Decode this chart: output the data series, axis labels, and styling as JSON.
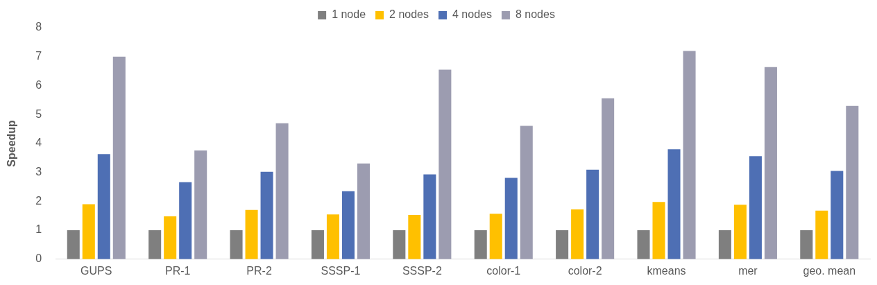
{
  "chart_data": {
    "type": "bar",
    "ylabel": "Speedup",
    "categories": [
      "GUPS",
      "PR-1",
      "PR-2",
      "SSSP-1",
      "SSSP-2",
      "color-1",
      "color-2",
      "kmeans",
      "mer",
      "geo. mean"
    ],
    "series": [
      {
        "name": "1 node",
        "color": "#7f7f7f",
        "values": [
          1,
          1,
          1,
          1,
          1,
          1,
          1,
          1,
          1,
          1
        ]
      },
      {
        "name": "2 nodes",
        "color": "#ffc000",
        "values": [
          1.9,
          1.48,
          1.7,
          1.55,
          1.53,
          1.57,
          1.72,
          1.98,
          1.88,
          1.68
        ]
      },
      {
        "name": "4 nodes",
        "color": "#4e6fb4",
        "values": [
          3.63,
          2.66,
          3.02,
          2.35,
          2.93,
          2.81,
          3.09,
          3.8,
          3.56,
          3.05
        ]
      },
      {
        "name": "8 nodes",
        "color": "#9c9cb0",
        "values": [
          7,
          3.76,
          4.7,
          3.31,
          6.55,
          4.61,
          5.56,
          7.2,
          6.64,
          5.3
        ]
      }
    ],
    "ylim": [
      0,
      8
    ],
    "yticks": [
      0,
      1,
      2,
      3,
      4,
      5,
      6,
      7,
      8
    ],
    "grid": false,
    "legend": "top"
  }
}
